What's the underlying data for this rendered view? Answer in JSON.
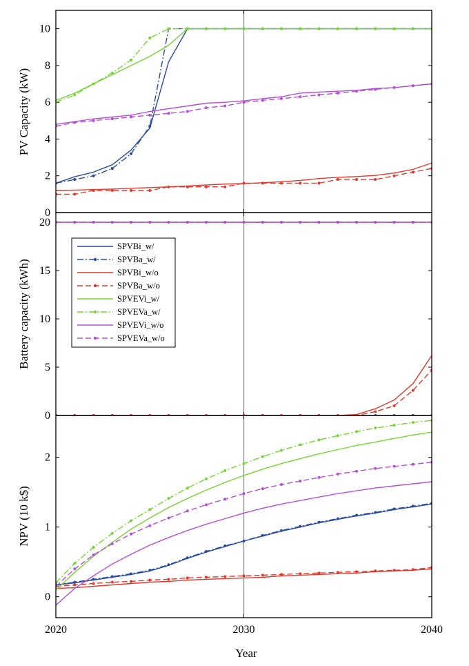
{
  "chart_data": {
    "type": "line",
    "xlabel": "Year",
    "x_ticks": [
      "2020",
      "2030",
      "2040"
    ],
    "x_range": [
      2020,
      2040
    ],
    "vertical_reference_line": 2030,
    "legend": {
      "placement": "upper-left of middle panel",
      "entries": [
        "SPVBi_w/",
        "SPVBa_w/",
        "SPVBi_w/o",
        "SPVBa_w/o",
        "SPVEVi_w/",
        "SPVEVa_w/",
        "SPVEVi_w/o",
        "SPVEVa_w/o"
      ]
    },
    "series_styles": [
      {
        "name": "SPVBi_w/",
        "color": "#2b4ba0",
        "dash": "solid",
        "marker": false
      },
      {
        "name": "SPVBa_w/",
        "color": "#2b4ba0",
        "dash": "dashdot",
        "marker": true
      },
      {
        "name": "SPVBi_w/o",
        "color": "#e03a2f",
        "dash": "solid",
        "marker": false
      },
      {
        "name": "SPVBa_w/o",
        "color": "#e03a2f",
        "dash": "dashed",
        "marker": true
      },
      {
        "name": "SPVEVi_w/",
        "color": "#77d334",
        "dash": "solid",
        "marker": false
      },
      {
        "name": "SPVEVa_w/",
        "color": "#77d334",
        "dash": "dashdot",
        "marker": true
      },
      {
        "name": "SPVEVi_w/o",
        "color": "#b24fd6",
        "dash": "solid",
        "marker": false
      },
      {
        "name": "SPVEVa_w/o",
        "color": "#b24fd6",
        "dash": "dashed",
        "marker": true
      }
    ],
    "x": [
      2020,
      2021,
      2022,
      2023,
      2024,
      2025,
      2026,
      2027,
      2028,
      2029,
      2030,
      2031,
      2032,
      2033,
      2034,
      2035,
      2036,
      2037,
      2038,
      2039,
      2040
    ],
    "panels": [
      {
        "ylabel": "PV Capacity (kW)",
        "ylim": [
          0,
          11
        ],
        "yticks": [
          0,
          2,
          4,
          6,
          8,
          10
        ],
        "series": [
          {
            "name": "SPVBi_w/",
            "values": [
              1.6,
              1.95,
              2.2,
              2.6,
              3.4,
              4.6,
              8.2,
              10,
              10,
              10,
              10,
              10,
              10,
              10,
              10,
              10,
              10,
              10,
              10,
              10,
              10
            ]
          },
          {
            "name": "SPVBa_w/",
            "values": [
              1.6,
              1.8,
              2.0,
              2.4,
              3.2,
              4.7,
              10,
              10,
              10,
              10,
              10,
              10,
              10,
              10,
              10,
              10,
              10,
              10,
              10,
              10,
              10
            ]
          },
          {
            "name": "SPVBi_w/o",
            "values": [
              1.2,
              1.22,
              1.25,
              1.28,
              1.32,
              1.36,
              1.4,
              1.45,
              1.5,
              1.55,
              1.58,
              1.62,
              1.68,
              1.75,
              1.85,
              1.92,
              1.96,
              2.02,
              2.15,
              2.35,
              2.7
            ]
          },
          {
            "name": "SPVBa_w/o",
            "values": [
              1.0,
              1.0,
              1.2,
              1.2,
              1.2,
              1.2,
              1.4,
              1.4,
              1.4,
              1.4,
              1.6,
              1.6,
              1.6,
              1.6,
              1.6,
              1.8,
              1.8,
              1.8,
              2.0,
              2.2,
              2.4
            ]
          },
          {
            "name": "SPVEVi_w/",
            "values": [
              6.1,
              6.5,
              7.0,
              7.5,
              8.0,
              8.5,
              9.1,
              10,
              10,
              10,
              10,
              10,
              10,
              10,
              10,
              10,
              10,
              10,
              10,
              10,
              10
            ]
          },
          {
            "name": "SPVEVa_w/",
            "values": [
              6.0,
              6.4,
              7.0,
              7.6,
              8.3,
              9.5,
              10,
              10,
              10,
              10,
              10,
              10,
              10,
              10,
              10,
              10,
              10,
              10,
              10,
              10,
              10
            ]
          },
          {
            "name": "SPVEVi_w/o",
            "values": [
              4.8,
              4.95,
              5.1,
              5.2,
              5.3,
              5.5,
              5.65,
              5.8,
              5.95,
              6.0,
              6.08,
              6.2,
              6.3,
              6.5,
              6.55,
              6.6,
              6.65,
              6.75,
              6.8,
              6.9,
              7.0
            ]
          },
          {
            "name": "SPVEVa_w/o",
            "values": [
              4.7,
              4.9,
              5.0,
              5.1,
              5.2,
              5.3,
              5.4,
              5.5,
              5.7,
              5.8,
              6.0,
              6.1,
              6.2,
              6.3,
              6.4,
              6.5,
              6.6,
              6.7,
              6.8,
              6.9,
              7.0
            ]
          }
        ]
      },
      {
        "ylabel": "Battery capacity (kWh)",
        "ylim": [
          0,
          21
        ],
        "yticks": [
          0,
          5,
          10,
          15,
          20
        ],
        "series": [
          {
            "name": "SPVBi_w/",
            "values": [
              0,
              0,
              0,
              0,
              0,
              0,
              0,
              0,
              0,
              0,
              0,
              0,
              0,
              0,
              0,
              0,
              0,
              0,
              0,
              0,
              0
            ]
          },
          {
            "name": "SPVBa_w/",
            "values": [
              0,
              0,
              0,
              0,
              0,
              0,
              0,
              0,
              0,
              0,
              0,
              0,
              0,
              0,
              0,
              0,
              0,
              0,
              0,
              0,
              0
            ]
          },
          {
            "name": "SPVBi_w/o",
            "values": [
              0,
              0,
              0,
              0,
              0,
              0,
              0,
              0,
              0,
              0,
              0,
              0,
              0,
              0,
              0,
              0,
              0.1,
              0.7,
              1.6,
              3.3,
              6.2
            ]
          },
          {
            "name": "SPVBa_w/o",
            "values": [
              0,
              0,
              0,
              0,
              0,
              0,
              0,
              0,
              0,
              0,
              0,
              0,
              0,
              0,
              0,
              0,
              0,
              0.4,
              1.0,
              2.6,
              4.7
            ]
          },
          {
            "name": "SPVEVi_w/",
            "values": [
              20,
              20,
              20,
              20,
              20,
              20,
              20,
              20,
              20,
              20,
              20,
              20,
              20,
              20,
              20,
              20,
              20,
              20,
              20,
              20,
              20
            ]
          },
          {
            "name": "SPVEVa_w/",
            "values": [
              20,
              20,
              20,
              20,
              20,
              20,
              20,
              20,
              20,
              20,
              20,
              20,
              20,
              20,
              20,
              20,
              20,
              20,
              20,
              20,
              20
            ]
          },
          {
            "name": "SPVEVi_w/o",
            "values": [
              20,
              20,
              20,
              20,
              20,
              20,
              20,
              20,
              20,
              20,
              20,
              20,
              20,
              20,
              20,
              20,
              20,
              20,
              20,
              20,
              20
            ]
          },
          {
            "name": "SPVEVa_w/o",
            "values": [
              20,
              20,
              20,
              20,
              20,
              20,
              20,
              20,
              20,
              20,
              20,
              20,
              20,
              20,
              20,
              20,
              20,
              20,
              20,
              20,
              20
            ]
          }
        ]
      },
      {
        "ylabel": "NPV (10 k$)",
        "ylim": [
          -0.3,
          2.6
        ],
        "yticks": [
          0,
          1,
          2
        ],
        "series": [
          {
            "name": "SPVBi_w/",
            "values": [
              0.17,
              0.2,
              0.24,
              0.28,
              0.32,
              0.37,
              0.45,
              0.55,
              0.64,
              0.72,
              0.8,
              0.87,
              0.94,
              1.0,
              1.06,
              1.11,
              1.16,
              1.2,
              1.25,
              1.29,
              1.33
            ]
          },
          {
            "name": "SPVBa_w/",
            "values": [
              0.17,
              0.21,
              0.25,
              0.29,
              0.33,
              0.38,
              0.46,
              0.56,
              0.65,
              0.73,
              0.8,
              0.88,
              0.95,
              1.01,
              1.07,
              1.12,
              1.17,
              1.21,
              1.26,
              1.3,
              1.34
            ]
          },
          {
            "name": "SPVBi_w/o",
            "values": [
              0.12,
              0.13,
              0.15,
              0.17,
              0.19,
              0.21,
              0.22,
              0.24,
              0.25,
              0.26,
              0.27,
              0.28,
              0.3,
              0.31,
              0.32,
              0.33,
              0.34,
              0.36,
              0.37,
              0.38,
              0.4
            ]
          },
          {
            "name": "SPVBa_w/o",
            "values": [
              0.15,
              0.17,
              0.19,
              0.21,
              0.22,
              0.24,
              0.25,
              0.27,
              0.28,
              0.29,
              0.3,
              0.31,
              0.32,
              0.33,
              0.34,
              0.35,
              0.36,
              0.37,
              0.38,
              0.39,
              0.42
            ]
          },
          {
            "name": "SPVEVi_w/",
            "values": [
              0.1,
              0.35,
              0.58,
              0.78,
              0.97,
              1.13,
              1.28,
              1.41,
              1.53,
              1.64,
              1.74,
              1.83,
              1.91,
              1.98,
              2.05,
              2.11,
              2.17,
              2.22,
              2.27,
              2.32,
              2.36
            ]
          },
          {
            "name": "SPVEVa_w/",
            "values": [
              0.2,
              0.48,
              0.71,
              0.91,
              1.09,
              1.25,
              1.41,
              1.56,
              1.69,
              1.81,
              1.91,
              2.01,
              2.1,
              2.18,
              2.25,
              2.31,
              2.37,
              2.42,
              2.46,
              2.5,
              2.53
            ]
          },
          {
            "name": "SPVEVi_w/o",
            "values": [
              -0.12,
              0.12,
              0.3,
              0.47,
              0.61,
              0.74,
              0.85,
              0.95,
              1.04,
              1.12,
              1.2,
              1.27,
              1.33,
              1.38,
              1.43,
              1.48,
              1.52,
              1.56,
              1.59,
              1.62,
              1.65
            ]
          },
          {
            "name": "SPVEVa_w/o",
            "values": [
              0.15,
              0.4,
              0.6,
              0.76,
              0.9,
              1.02,
              1.13,
              1.23,
              1.32,
              1.4,
              1.48,
              1.55,
              1.61,
              1.66,
              1.71,
              1.76,
              1.8,
              1.84,
              1.87,
              1.9,
              1.93
            ]
          }
        ]
      }
    ]
  }
}
